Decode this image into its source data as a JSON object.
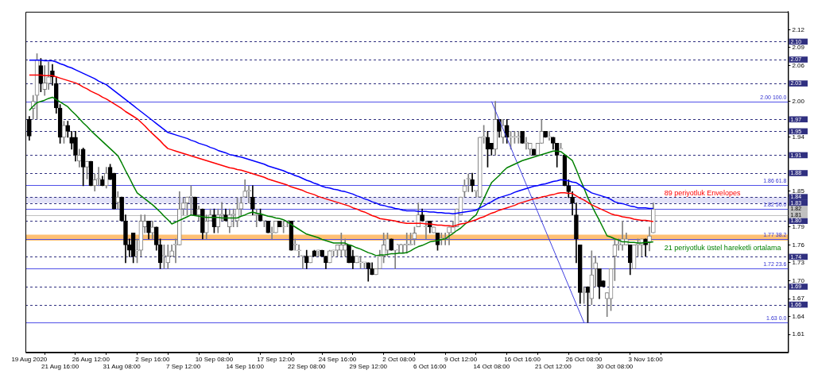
{
  "chart_data": {
    "type": "candlestick",
    "grid": false,
    "legend": false,
    "categories": [
      "19 Aug 2020",
      null,
      null,
      null,
      null,
      null,
      null,
      null,
      "21 Aug 16:00",
      null,
      null,
      null,
      null,
      null,
      null,
      null,
      "26 Aug 12:00",
      null,
      null,
      null,
      null,
      null,
      null,
      null,
      "31 Aug 08:00",
      null,
      null,
      null,
      null,
      null,
      null,
      null,
      "2 Sep 16:00",
      null,
      null,
      null,
      null,
      null,
      null,
      null,
      "7 Sep 12:00",
      null,
      null,
      null,
      null,
      null,
      null,
      null,
      "10 Sep 08:00",
      null,
      null,
      null,
      null,
      null,
      null,
      null,
      "14 Sep 16:00",
      null,
      null,
      null,
      null,
      null,
      null,
      null,
      "17 Sep 12:00",
      null,
      null,
      null,
      null,
      null,
      null,
      null,
      "22 Sep 08:00",
      null,
      null,
      null,
      null,
      null,
      null,
      null,
      "24 Sep 16:00",
      null,
      null,
      null,
      null,
      null,
      null,
      null,
      "29 Sep 12:00",
      null,
      null,
      null,
      null,
      null,
      null,
      null,
      "2 Oct 08:00",
      null,
      null,
      null,
      null,
      null,
      null,
      null,
      "6 Oct 16:00",
      null,
      null,
      null,
      null,
      null,
      null,
      null,
      "9 Oct 12:00",
      null,
      null,
      null,
      null,
      null,
      null,
      null,
      "14 Oct 08:00",
      null,
      null,
      null,
      null,
      null,
      null,
      null,
      "16 Oct 16:00",
      null,
      null,
      null,
      null,
      null,
      null,
      null,
      "21 Oct 12:00",
      null,
      null,
      null,
      null,
      null,
      null,
      null,
      "26 Oct 08:00",
      null,
      null,
      null,
      null,
      null,
      null,
      null,
      "30 Oct 08:00",
      null,
      null,
      null,
      null,
      null,
      null,
      null,
      "3 Nov 16:00",
      null,
      null
    ],
    "ohlc": [
      [
        1.97,
        1.975,
        1.935,
        1.942
      ],
      [
        1.988,
        2.01,
        1.97,
        2.0
      ],
      [
        2.01,
        2.08,
        1.97,
        2.07
      ],
      [
        2.06,
        2.072,
        2.016,
        2.03
      ],
      [
        2.02,
        2.06,
        2.01,
        2.031
      ],
      [
        2.03,
        2.066,
        2.02,
        2.041
      ],
      [
        2.051,
        2.062,
        2.027,
        2.041
      ],
      [
        2.03,
        2.04,
        1.98,
        1.989
      ],
      [
        1.989,
        1.995,
        1.93,
        1.94
      ],
      [
        1.94,
        1.967,
        1.93,
        1.96
      ],
      [
        1.96,
        1.967,
        1.94,
        1.95
      ],
      [
        1.94,
        1.95,
        1.92,
        1.93
      ],
      [
        1.94,
        1.95,
        1.9,
        1.91
      ],
      [
        1.9,
        1.92,
        1.89,
        1.91
      ],
      [
        1.92,
        1.922,
        1.859,
        1.89
      ],
      [
        1.89,
        1.9,
        1.87,
        1.9
      ],
      [
        1.9,
        1.9,
        1.859,
        1.859
      ],
      [
        1.859,
        1.879,
        1.85,
        1.869
      ],
      [
        1.87,
        1.89,
        1.859,
        1.87
      ],
      [
        1.869,
        1.875,
        1.859,
        1.859
      ],
      [
        1.859,
        1.89,
        1.855,
        1.88
      ],
      [
        1.89,
        1.895,
        1.869,
        1.869
      ],
      [
        1.88,
        1.88,
        1.82,
        1.82
      ],
      [
        1.831,
        1.849,
        1.82,
        1.84
      ],
      [
        1.84,
        1.84,
        1.8,
        1.8
      ],
      [
        1.8,
        1.81,
        1.73,
        1.76
      ],
      [
        1.76,
        1.77,
        1.74,
        1.751
      ],
      [
        1.78,
        1.78,
        1.73,
        1.741
      ],
      [
        1.75,
        1.77,
        1.73,
        1.751
      ],
      [
        1.751,
        1.81,
        1.741,
        1.8
      ],
      [
        1.79,
        1.81,
        1.78,
        1.8
      ],
      [
        1.8,
        1.8,
        1.77,
        1.78
      ],
      [
        1.78,
        1.8,
        1.77,
        1.79
      ],
      [
        1.79,
        1.79,
        1.751,
        1.76
      ],
      [
        1.76,
        1.77,
        1.72,
        1.73
      ],
      [
        1.741,
        1.76,
        1.72,
        1.741
      ],
      [
        1.73,
        1.76,
        1.72,
        1.741
      ],
      [
        1.741,
        1.76,
        1.741,
        1.75
      ],
      [
        1.76,
        1.77,
        1.73,
        1.76
      ],
      [
        1.76,
        1.849,
        1.76,
        1.82
      ],
      [
        1.82,
        1.839,
        1.81,
        1.83
      ],
      [
        1.83,
        1.84,
        1.81,
        1.84
      ],
      [
        1.84,
        1.859,
        1.81,
        1.84
      ],
      [
        1.84,
        1.84,
        1.81,
        1.81
      ],
      [
        1.81,
        1.825,
        1.8,
        1.82
      ],
      [
        1.82,
        1.82,
        1.77,
        1.78
      ],
      [
        1.78,
        1.81,
        1.77,
        1.8
      ],
      [
        1.8,
        1.82,
        1.8,
        1.81
      ],
      [
        1.81,
        1.82,
        1.78,
        1.79
      ],
      [
        1.79,
        1.82,
        1.78,
        1.81
      ],
      [
        1.81,
        1.831,
        1.8,
        1.81
      ],
      [
        1.81,
        1.82,
        1.8,
        1.8
      ],
      [
        1.79,
        1.82,
        1.78,
        1.81
      ],
      [
        1.81,
        1.82,
        1.79,
        1.81
      ],
      [
        1.8,
        1.839,
        1.79,
        1.82
      ],
      [
        1.82,
        1.84,
        1.81,
        1.83
      ],
      [
        1.84,
        1.869,
        1.84,
        1.85
      ],
      [
        1.85,
        1.859,
        1.83,
        1.85
      ],
      [
        1.84,
        1.859,
        1.81,
        1.82
      ],
      [
        1.81,
        1.82,
        1.79,
        1.81
      ],
      [
        1.81,
        1.82,
        1.8,
        1.8
      ],
      [
        1.8,
        1.8,
        1.79,
        1.8
      ],
      [
        1.8,
        1.8,
        1.78,
        1.78
      ],
      [
        1.78,
        1.79,
        1.77,
        1.78
      ],
      [
        1.78,
        1.8,
        1.78,
        1.8
      ],
      [
        1.8,
        1.8,
        1.79,
        1.79
      ],
      [
        1.79,
        1.8,
        1.78,
        1.79
      ],
      [
        1.8,
        1.8,
        1.79,
        1.8
      ],
      [
        1.8,
        1.8,
        1.751,
        1.751
      ],
      [
        1.76,
        1.77,
        1.751,
        1.76
      ],
      [
        1.75,
        1.76,
        1.741,
        1.75
      ],
      [
        1.741,
        1.741,
        1.72,
        1.741
      ],
      [
        1.741,
        1.751,
        1.72,
        1.73
      ],
      [
        1.73,
        1.741,
        1.73,
        1.741
      ],
      [
        1.75,
        1.751,
        1.741,
        1.741
      ],
      [
        1.75,
        1.751,
        1.741,
        1.75
      ],
      [
        1.751,
        1.751,
        1.741,
        1.741
      ],
      [
        1.741,
        1.741,
        1.72,
        1.73
      ],
      [
        1.73,
        1.751,
        1.73,
        1.75
      ],
      [
        1.75,
        1.751,
        1.741,
        1.75
      ],
      [
        1.751,
        1.76,
        1.741,
        1.76
      ],
      [
        1.751,
        1.78,
        1.741,
        1.76
      ],
      [
        1.751,
        1.77,
        1.741,
        1.76
      ],
      [
        1.76,
        1.76,
        1.73,
        1.73
      ],
      [
        1.741,
        1.751,
        1.72,
        1.73
      ],
      [
        1.73,
        1.741,
        1.73,
        1.741
      ],
      [
        1.73,
        1.741,
        1.72,
        1.73
      ],
      [
        1.73,
        1.73,
        1.72,
        1.73
      ],
      [
        1.73,
        1.73,
        1.699,
        1.72
      ],
      [
        1.72,
        1.73,
        1.71,
        1.71
      ],
      [
        1.71,
        1.72,
        1.71,
        1.72
      ],
      [
        1.72,
        1.751,
        1.72,
        1.741
      ],
      [
        1.741,
        1.78,
        1.73,
        1.76
      ],
      [
        1.751,
        1.78,
        1.741,
        1.77
      ],
      [
        1.77,
        1.77,
        1.751,
        1.751
      ],
      [
        1.751,
        1.751,
        1.72,
        1.751
      ],
      [
        1.76,
        1.76,
        1.746,
        1.76
      ],
      [
        1.76,
        1.76,
        1.746,
        1.76
      ],
      [
        1.76,
        1.78,
        1.746,
        1.76
      ],
      [
        1.76,
        1.78,
        1.76,
        1.76
      ],
      [
        1.77,
        1.79,
        1.76,
        1.78
      ],
      [
        1.79,
        1.83,
        1.79,
        1.81
      ],
      [
        1.81,
        1.82,
        1.8,
        1.8
      ],
      [
        1.79,
        1.8,
        1.77,
        1.79
      ],
      [
        1.8,
        1.8,
        1.78,
        1.79
      ],
      [
        1.78,
        1.79,
        1.78,
        1.79
      ],
      [
        1.78,
        1.78,
        1.751,
        1.76
      ],
      [
        1.77,
        1.78,
        1.76,
        1.77
      ],
      [
        1.77,
        1.78,
        1.76,
        1.77
      ],
      [
        1.78,
        1.79,
        1.76,
        1.79
      ],
      [
        1.78,
        1.8,
        1.78,
        1.79
      ],
      [
        1.79,
        1.82,
        1.79,
        1.82
      ],
      [
        1.81,
        1.84,
        1.81,
        1.84
      ],
      [
        1.849,
        1.869,
        1.84,
        1.859
      ],
      [
        1.87,
        1.879,
        1.849,
        1.87
      ],
      [
        1.869,
        1.88,
        1.849,
        1.859
      ],
      [
        1.85,
        1.85,
        1.84,
        1.85
      ],
      [
        1.84,
        1.94,
        1.84,
        1.94
      ],
      [
        1.94,
        1.96,
        1.93,
        1.94
      ],
      [
        1.94,
        1.95,
        1.89,
        1.92
      ],
      [
        1.93,
        1.93,
        1.91,
        1.92
      ],
      [
        1.92,
        2.0,
        1.91,
        1.97
      ],
      [
        1.97,
        1.97,
        1.94,
        1.95
      ],
      [
        1.94,
        1.97,
        1.93,
        1.96
      ],
      [
        1.96,
        1.97,
        1.93,
        1.94
      ],
      [
        1.94,
        1.95,
        1.92,
        1.94
      ],
      [
        1.94,
        1.95,
        1.93,
        1.94
      ],
      [
        1.94,
        1.95,
        1.93,
        1.94
      ],
      [
        1.95,
        1.95,
        1.93,
        1.93
      ],
      [
        1.93,
        1.94,
        1.92,
        1.93
      ],
      [
        1.92,
        1.93,
        1.91,
        1.93
      ],
      [
        1.92,
        1.92,
        1.91,
        1.91
      ],
      [
        1.91,
        1.93,
        1.91,
        1.93
      ],
      [
        1.93,
        1.97,
        1.93,
        1.95
      ],
      [
        1.95,
        1.95,
        1.94,
        1.94
      ],
      [
        1.94,
        1.95,
        1.935,
        1.94
      ],
      [
        1.94,
        1.94,
        1.92,
        1.93
      ],
      [
        1.93,
        1.93,
        1.89,
        1.91
      ],
      [
        1.92,
        1.93,
        1.92,
        1.92
      ],
      [
        1.91,
        1.91,
        1.859,
        1.859
      ],
      [
        1.859,
        1.869,
        1.839,
        1.849
      ],
      [
        1.84,
        1.849,
        1.81,
        1.83
      ],
      [
        1.81,
        1.83,
        1.73,
        1.77
      ],
      [
        1.76,
        1.76,
        1.662,
        1.68
      ],
      [
        1.68,
        1.69,
        1.662,
        1.68
      ],
      [
        1.69,
        1.69,
        1.63,
        1.68
      ],
      [
        1.67,
        1.75,
        1.66,
        1.71
      ],
      [
        1.72,
        1.741,
        1.69,
        1.73
      ],
      [
        1.72,
        1.72,
        1.67,
        1.69
      ],
      [
        1.7,
        1.7,
        1.69,
        1.69
      ],
      [
        1.67,
        1.68,
        1.64,
        1.68
      ],
      [
        1.67,
        1.72,
        1.65,
        1.72
      ],
      [
        1.741,
        1.77,
        1.7,
        1.76
      ],
      [
        1.76,
        1.77,
        1.751,
        1.76
      ],
      [
        1.76,
        1.8,
        1.751,
        1.77
      ],
      [
        1.76,
        1.78,
        1.76,
        1.77
      ],
      [
        1.76,
        1.76,
        1.71,
        1.73
      ],
      [
        1.72,
        1.76,
        1.72,
        1.76
      ],
      [
        1.76,
        1.77,
        1.741,
        1.76
      ],
      [
        1.76,
        1.77,
        1.741,
        1.77
      ],
      [
        1.77,
        1.77,
        1.741,
        1.76
      ],
      [
        1.765,
        1.79,
        1.75,
        1.775
      ],
      [
        1.78,
        1.83,
        1.78,
        1.82
      ]
    ],
    "series": [
      {
        "type": "line",
        "color": "#0000ff",
        "values": [
          2.069,
          2.069,
          2.069,
          2.069,
          2.068,
          2.068,
          2.068,
          2.066,
          2.063,
          2.061,
          2.058,
          2.056,
          2.053,
          2.05,
          2.047,
          2.044,
          2.041,
          2.038,
          2.034,
          2.031,
          2.028,
          2.023,
          2.018,
          2.013,
          2.008,
          2.003,
          1.998,
          1.993,
          1.988,
          1.983,
          1.978,
          1.973,
          1.968,
          1.963,
          1.958,
          1.953,
          1.948,
          1.946,
          1.944,
          1.942,
          1.94,
          1.938,
          1.935,
          1.933,
          1.93,
          1.928,
          1.926,
          1.923,
          1.921,
          1.918,
          1.916,
          1.914,
          1.911,
          1.91,
          1.908,
          1.907,
          1.905,
          1.903,
          1.901,
          1.899,
          1.897,
          1.895,
          1.892,
          1.89,
          1.888,
          1.886,
          1.884,
          1.881,
          1.879,
          1.876,
          1.874,
          1.871,
          1.868,
          1.866,
          1.863,
          1.861,
          1.858,
          1.856,
          1.855,
          1.853,
          1.852,
          1.85,
          1.849,
          1.847,
          1.845,
          1.842,
          1.84,
          1.837,
          1.835,
          1.832,
          1.83,
          1.827,
          1.826,
          1.824,
          1.823,
          1.821,
          1.82,
          1.818,
          1.817,
          1.817,
          1.817,
          1.816,
          1.816,
          1.816,
          1.815,
          1.815,
          1.814,
          1.814,
          1.813,
          1.813,
          1.812,
          1.813,
          1.814,
          1.815,
          1.816,
          1.817,
          1.818,
          1.822,
          1.825,
          1.829,
          1.832,
          1.836,
          1.839,
          1.841,
          1.843,
          1.845,
          1.848,
          1.85,
          1.852,
          1.854,
          1.856,
          1.858,
          1.859,
          1.861,
          1.862,
          1.864,
          1.866,
          1.867,
          1.869,
          1.868,
          1.867,
          1.865,
          1.864,
          1.86,
          1.855,
          1.851,
          1.847,
          1.845,
          1.843,
          1.841,
          1.839,
          1.836,
          1.832,
          1.83,
          1.829,
          1.827,
          1.825,
          1.824,
          1.822,
          1.822,
          1.822,
          1.821,
          1.821
        ]
      },
      {
        "type": "line",
        "name": "89 periyotluk Envelopes",
        "color": "#ff0000",
        "values": [
          2.044,
          2.044,
          2.044,
          2.044,
          2.043,
          2.043,
          2.043,
          2.041,
          2.039,
          2.037,
          2.035,
          2.033,
          2.031,
          2.028,
          2.024,
          2.021,
          2.017,
          2.014,
          2.011,
          2.007,
          2.004,
          2.0,
          1.996,
          1.992,
          1.988,
          1.983,
          1.979,
          1.975,
          1.971,
          1.965,
          1.959,
          1.952,
          1.946,
          1.94,
          1.934,
          1.927,
          1.921,
          1.919,
          1.917,
          1.915,
          1.913,
          1.911,
          1.909,
          1.907,
          1.905,
          1.903,
          1.901,
          1.899,
          1.897,
          1.895,
          1.893,
          1.891,
          1.889,
          1.888,
          1.886,
          1.885,
          1.883,
          1.881,
          1.879,
          1.877,
          1.875,
          1.873,
          1.87,
          1.868,
          1.866,
          1.864,
          1.862,
          1.86,
          1.857,
          1.855,
          1.853,
          1.851,
          1.848,
          1.846,
          1.844,
          1.841,
          1.839,
          1.837,
          1.835,
          1.833,
          1.831,
          1.829,
          1.827,
          1.825,
          1.822,
          1.82,
          1.817,
          1.815,
          1.812,
          1.809,
          1.807,
          1.804,
          1.803,
          1.802,
          1.801,
          1.8,
          1.798,
          1.797,
          1.796,
          1.796,
          1.796,
          1.796,
          1.796,
          1.795,
          1.795,
          1.794,
          1.793,
          1.793,
          1.792,
          1.792,
          1.791,
          1.793,
          1.795,
          1.796,
          1.798,
          1.8,
          1.802,
          1.805,
          1.807,
          1.81,
          1.813,
          1.815,
          1.818,
          1.82,
          1.822,
          1.824,
          1.826,
          1.829,
          1.831,
          1.833,
          1.835,
          1.837,
          1.838,
          1.84,
          1.841,
          1.843,
          1.844,
          1.846,
          1.847,
          1.847,
          1.846,
          1.846,
          1.842,
          1.838,
          1.835,
          1.831,
          1.827,
          1.824,
          1.821,
          1.818,
          1.815,
          1.812,
          1.81,
          1.809,
          1.807,
          1.806,
          1.805,
          1.803,
          1.802,
          1.801,
          1.801,
          1.8,
          1.799
        ]
      },
      {
        "type": "line",
        "name": "21 periyotluk üstel hareketli ortalama",
        "color": "#008000",
        "values": [
          1.985,
          1.992,
          1.998,
          2.0,
          2.002,
          2.005,
          2.007,
          2.003,
          1.999,
          1.995,
          1.991,
          1.984,
          1.978,
          1.971,
          1.964,
          1.958,
          1.951,
          1.945,
          1.939,
          1.933,
          1.927,
          1.921,
          1.915,
          1.909,
          1.897,
          1.884,
          1.872,
          1.859,
          1.847,
          1.842,
          1.837,
          1.832,
          1.827,
          1.821,
          1.815,
          1.808,
          1.802,
          1.795,
          1.798,
          1.801,
          1.804,
          1.807,
          1.81,
          1.809,
          1.808,
          1.807,
          1.806,
          1.806,
          1.806,
          1.806,
          1.805,
          1.805,
          1.805,
          1.805,
          1.805,
          1.808,
          1.81,
          1.813,
          1.815,
          1.813,
          1.812,
          1.81,
          1.808,
          1.807,
          1.805,
          1.804,
          1.802,
          1.798,
          1.794,
          1.79,
          1.786,
          1.782,
          1.778,
          1.776,
          1.774,
          1.772,
          1.769,
          1.767,
          1.765,
          1.763,
          1.763,
          1.763,
          1.763,
          1.76,
          1.758,
          1.755,
          1.753,
          1.75,
          1.747,
          1.745,
          1.742,
          1.743,
          1.743,
          1.744,
          1.745,
          1.745,
          1.746,
          1.746,
          1.747,
          1.75,
          1.754,
          1.757,
          1.759,
          1.762,
          1.765,
          1.766,
          1.767,
          1.769,
          1.77,
          1.775,
          1.779,
          1.784,
          1.788,
          1.794,
          1.799,
          1.805,
          1.81,
          1.824,
          1.837,
          1.851,
          1.864,
          1.87,
          1.876,
          1.883,
          1.889,
          1.892,
          1.895,
          1.898,
          1.901,
          1.903,
          1.905,
          1.907,
          1.909,
          1.911,
          1.913,
          1.915,
          1.917,
          1.917,
          1.916,
          1.911,
          1.906,
          1.901,
          1.886,
          1.87,
          1.855,
          1.839,
          1.826,
          1.813,
          1.801,
          1.788,
          1.775,
          1.773,
          1.77,
          1.768,
          1.765,
          1.765,
          1.764,
          1.764,
          1.763,
          1.763,
          1.764,
          1.764,
          1.765
        ]
      },
      {
        "type": "line",
        "color": "#4040e0",
        "x": [
          "14 Oct 08:00",
          "26 Oct 08:00"
        ],
        "values": [
          2.0,
          1.63
        ]
      }
    ],
    "ylim": [
      1.58,
      2.15
    ],
    "yticks": [
      2.12,
      2.09,
      2.06,
      {
        "value": 2.0,
        "label": "2.00"
      },
      1.94,
      1.85,
      1.79,
      1.76,
      1.73,
      {
        "value": 1.7,
        "label": "1.70"
      },
      1.67,
      1.64,
      1.61
    ],
    "ref_lines": [
      {
        "axis": "y",
        "value": 2.1,
        "label": "2.10",
        "color": "#303080",
        "line_style": "dashed"
      },
      {
        "axis": "y",
        "value": 2.07,
        "label": "2.07",
        "color": "#303080",
        "line_style": "dashed"
      },
      {
        "axis": "y",
        "value": 2.03,
        "label": "2.03",
        "color": "#303080",
        "line_style": "dashed"
      },
      {
        "axis": "y",
        "value": 1.97,
        "label": "1.97",
        "color": "#303080",
        "line_style": "dashed"
      },
      {
        "axis": "y",
        "value": 1.95,
        "label": "1.95",
        "color": "#303080",
        "line_style": "dashed"
      },
      {
        "axis": "y",
        "value": 1.91,
        "label": "1.91",
        "color": "#303080",
        "line_style": "dashed"
      },
      {
        "axis": "y",
        "value": 1.88,
        "label": "1.88",
        "color": "#303080",
        "line_style": "dashed"
      },
      {
        "axis": "y",
        "value": 1.84,
        "label": "1.84",
        "color": "#303080",
        "line_style": "dashed"
      },
      {
        "axis": "y",
        "value": 1.83,
        "label": "1.83",
        "color": "#303080",
        "line_style": "dashed"
      },
      {
        "axis": "y",
        "value": 1.8,
        "label": "1.80",
        "color": "#303080",
        "line_style": "dashed"
      },
      {
        "axis": "y",
        "value": 1.74,
        "label": "1.74",
        "color": "#303080",
        "line_style": "dashed"
      },
      {
        "axis": "y",
        "value": 1.69,
        "label": "1.69",
        "color": "#303080",
        "line_style": "dashed"
      },
      {
        "axis": "y",
        "value": 1.66,
        "label": "1.66",
        "color": "#303080",
        "line_style": "dashed"
      },
      {
        "axis": "y",
        "value": 1.82,
        "label": "1.82",
        "color": "#c0c0c0",
        "line_style": "solid"
      },
      {
        "axis": "y",
        "value": 1.81,
        "label": "1.81",
        "color": "#c0c0c0",
        "line_style": "solid"
      },
      {
        "axis": "y",
        "value": 2.0,
        "color": "#5050e8",
        "line_style": "solid"
      },
      {
        "axis": "y",
        "value": 1.86,
        "color": "#5050e8",
        "line_style": "solid"
      },
      {
        "axis": "y",
        "value": 1.82,
        "color": "#5050e8",
        "line_style": "solid"
      },
      {
        "axis": "y",
        "value": 1.77,
        "color": "#5050e8",
        "line_style": "solid"
      },
      {
        "axis": "y",
        "value": 1.72,
        "color": "#5050e8",
        "line_style": "solid"
      },
      {
        "axis": "y",
        "value": 1.63,
        "color": "#5050e8",
        "line_style": "solid"
      }
    ],
    "bands": [
      {
        "axis": "y",
        "from": 1.83,
        "to": 1.84,
        "color": "#c8c8f0"
      },
      {
        "axis": "y",
        "from": 1.767,
        "to": 1.777,
        "color": "#ff8c00"
      }
    ],
    "annotations": [
      {
        "text": "2.00 100.0",
        "y": 2.0
      },
      {
        "text": "1.86 61.8",
        "y": 1.86
      },
      {
        "text": "1.82 50.0",
        "y": 1.82
      },
      {
        "text": "1.77 38.2",
        "y": 1.77
      },
      {
        "text": "1.72 23.6",
        "y": 1.72
      },
      {
        "text": "1.63 0.0",
        "y": 1.63
      }
    ]
  }
}
